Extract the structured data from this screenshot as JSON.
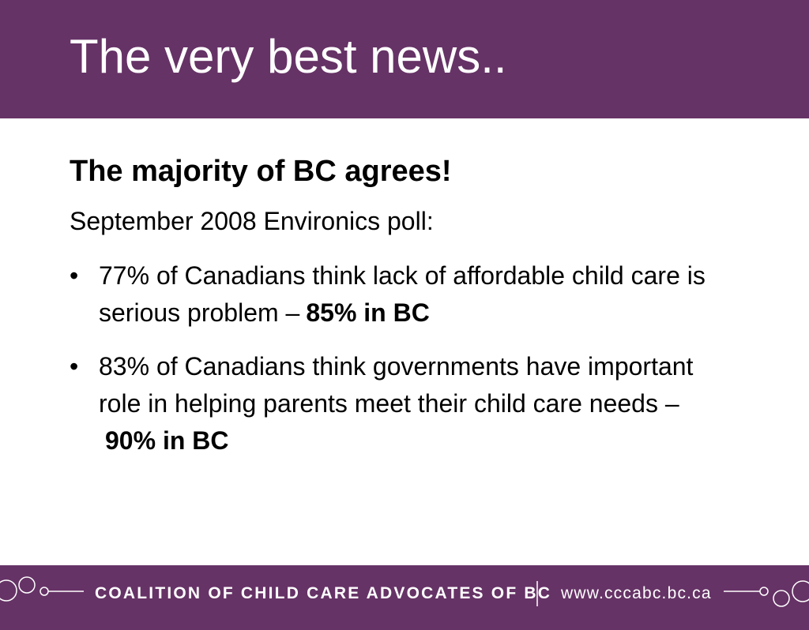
{
  "header": {
    "title": "The very best news.."
  },
  "body": {
    "heading": "The majority of BC agrees!",
    "subheading": "September 2008 Environics poll:",
    "bullets": [
      {
        "text": "77% of Canadians think lack of affordable child care is serious problem –",
        "bold": "85% in BC"
      },
      {
        "text": "83% of Canadians think governments have important role in helping parents meet their child care needs –",
        "bold": "90% in BC"
      }
    ]
  },
  "footer": {
    "organization": "COALITION OF CHILD CARE ADVOCATES OF BC",
    "url": "www.cccabc.bc.ca"
  }
}
